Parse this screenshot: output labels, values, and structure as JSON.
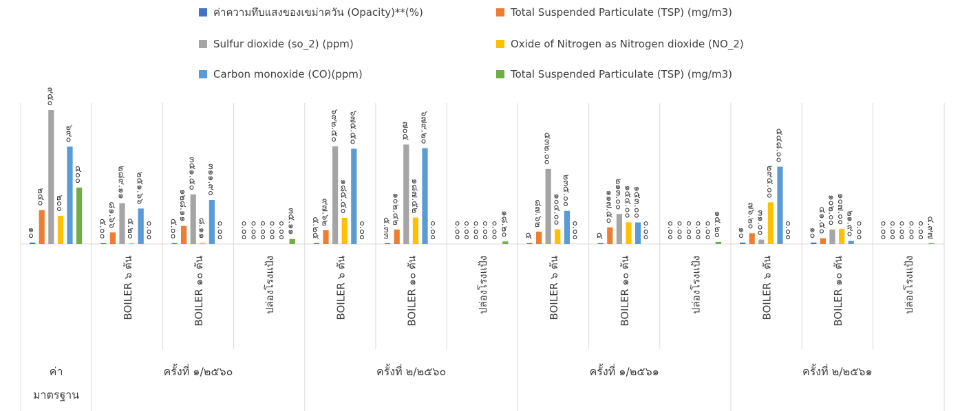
{
  "chart_data": {
    "type": "bar",
    "title": "",
    "xlabel": "",
    "ylabel": "",
    "ylim": [
      0,
      950
    ],
    "grid": false,
    "legend_position": "top",
    "colors": [
      "#4472C4",
      "#ED7D31",
      "#A5A5A5",
      "#FFC000",
      "#5B9BD5",
      "#70AD47"
    ],
    "series": [
      {
        "name": "ค่าความทึบแสงของเขม่าควัน (Opacity)**(%)"
      },
      {
        "name": "Total Suspended Particulate (TSP) (mg/m3)"
      },
      {
        "name": "Sulfur dioxide (so_2) (ppm)"
      },
      {
        "name": "Oxide of Nitrogen as Nitrogen dioxide (NO_2)"
      },
      {
        "name": "Carbon monoxide (CO)(ppm)"
      },
      {
        "name": "Total Suspended Particulate (TSP) (mg/m3)"
      }
    ],
    "groups": [
      {
        "label": "ค่า\nมาตรฐาน",
        "categories": [
          {
            "label": "",
            "bars": [
              {
                "s": 0,
                "v": 10,
                "t": "๑๐"
              },
              {
                "s": 1,
                "v": 240,
                "t": "๒๔๐"
              },
              {
                "s": 2,
                "v": 950,
                "t": "๙๕๐"
              },
              {
                "s": 3,
                "v": 200,
                "t": "๒๐๐"
              },
              {
                "s": 4,
                "v": 690,
                "t": "๖๙๐"
              },
              {
                "s": 5,
                "v": 400,
                "t": "๔๐๐"
              }
            ]
          }
        ]
      },
      {
        "label": "ครั้งที่  ๑/๒๕๖๐",
        "categories": [
          {
            "label": "BOILER ๖ ตัน",
            "bars": [
              {
                "s": 0,
                "v": 5,
                "t": "๕.๐๐"
              },
              {
                "s": 1,
                "v": 81.66,
                "t": "๘๑.๖๖"
              },
              {
                "s": 2,
                "v": 289.11,
                "t": "๒๘๙.๑๑"
              },
              {
                "s": 3,
                "v": 5.2,
                "t": "๕.๒๐"
              },
              {
                "s": 4,
                "v": 251.66,
                "t": "๒๕๑.๖๖"
              },
              {
                "s": 5,
                "v": 0,
                "t": "๐.๐๐"
              }
            ]
          },
          {
            "label": "BOILER ๑๐ ตัน",
            "bars": [
              {
                "s": 0,
                "v": 5,
                "t": "๕.๐๐"
              },
              {
                "s": 1,
                "v": 128.11,
                "t": "๑๒๘.๑๑"
              },
              {
                "s": 2,
                "v": 351.5,
                "t": "๓๕๑.๕๐"
              },
              {
                "s": 3,
                "v": 8.11,
                "t": "๘.๑๑"
              },
              {
                "s": 4,
                "v": 311.9,
                "t": "๓๑๑.๙๐"
              },
              {
                "s": 5,
                "v": 0,
                "t": "๐.๐๐"
              }
            ]
          },
          {
            "label": "ปล่องโรงแป้ง",
            "bars": [
              {
                "s": 0,
                "v": 0,
                "t": "๐.๐๐"
              },
              {
                "s": 1,
                "v": 0,
                "t": "๐.๐๐"
              },
              {
                "s": 2,
                "v": 0,
                "t": "๐.๐๐"
              },
              {
                "s": 3,
                "v": 0,
                "t": "๐.๐๐"
              },
              {
                "s": 4,
                "v": 0,
                "t": "๐.๐๐"
              },
              {
                "s": 5,
                "v": 35.11,
                "t": "๓๕.๑๑"
              }
            ]
          }
        ]
      },
      {
        "label": "ครั้งที่  ๒/๒๕๖๐",
        "categories": [
          {
            "label": "BOILER ๖ ตัน",
            "bars": [
              {
                "s": 0,
                "v": 5.25,
                "t": "๕.๒๕"
              },
              {
                "s": 1,
                "v": 97.62,
                "t": "๙๗.๖๒"
              },
              {
                "s": 2,
                "v": 692.5,
                "t": "๖๙๒.๕๐"
              },
              {
                "s": 3,
                "v": 185.5,
                "t": "๑๘๕.๕๐"
              },
              {
                "s": 4,
                "v": 675.5,
                "t": "๖๗๕.๕๐"
              },
              {
                "s": 5,
                "v": 0,
                "t": "๐.๐๐"
              }
            ]
          },
          {
            "label": "BOILER ๑๐ ตัน",
            "bars": [
              {
                "s": 0,
                "v": 5.33,
                "t": "๕.๓๓"
              },
              {
                "s": 1,
                "v": 102.42,
                "t": "๑๐๒.๔๒"
              },
              {
                "s": 2,
                "v": 705,
                "t": "๗๐๕"
              },
              {
                "s": 3,
                "v": 187.52,
                "t": "๑๘๗.๕๒"
              },
              {
                "s": 4,
                "v": 679.2,
                "t": "๖๗๙.๒๐"
              },
              {
                "s": 5,
                "v": 0,
                "t": "๐.๐๐"
              }
            ]
          },
          {
            "label": "ปล่องโรงแป้ง",
            "bars": [
              {
                "s": 0,
                "v": 0,
                "t": "๐.๐๐"
              },
              {
                "s": 1,
                "v": 0,
                "t": "๐.๐๐"
              },
              {
                "s": 2,
                "v": 0,
                "t": "๐.๐๐"
              },
              {
                "s": 3,
                "v": 0,
                "t": "๐.๐๐"
              },
              {
                "s": 4,
                "v": 0,
                "t": "๐.๐๐"
              },
              {
                "s": 5,
                "v": 18.2,
                "t": "๑๘.๒๐"
              }
            ]
          }
        ]
      },
      {
        "label": "ครั้งที่  ๑/๒๕๖๑",
        "categories": [
          {
            "label": "BOILER ๖ ตัน",
            "bars": [
              {
                "s": 0,
                "v": 5,
                "t": "๕"
              },
              {
                "s": 1,
                "v": 87.62,
                "t": "๘๗.๖๒"
              },
              {
                "s": 2,
                "v": 532,
                "t": "๕๓๒.๐๐"
              },
              {
                "s": 3,
                "v": 104,
                "t": "๑๐๔.๐๐"
              },
              {
                "s": 4,
                "v": 235,
                "t": "๒๓๕.๐๐"
              },
              {
                "s": 5,
                "v": 0,
                "t": "๐.๐๐"
              }
            ]
          },
          {
            "label": "BOILER ๑๐ ตัน",
            "bars": [
              {
                "s": 0,
                "v": 5,
                "t": "๕"
              },
              {
                "s": 1,
                "v": 117.5,
                "t": "๑๑๗.๕๐"
              },
              {
                "s": 2,
                "v": 213,
                "t": "๒๑๓.๐๐"
              },
              {
                "s": 3,
                "v": 154,
                "t": "๑๕๔.๐๐"
              },
              {
                "s": 4,
                "v": 153,
                "t": "๑๕๓.๐๐"
              },
              {
                "s": 5,
                "v": 0,
                "t": "๐.๐๐"
              }
            ]
          },
          {
            "label": "ปล่องโรงแป้ง",
            "bars": [
              {
                "s": 0,
                "v": 0,
                "t": "๐.๐๐"
              },
              {
                "s": 1,
                "v": 0,
                "t": "๐.๐๐"
              },
              {
                "s": 2,
                "v": 0,
                "t": "๐.๐๐"
              },
              {
                "s": 3,
                "v": 0,
                "t": "๐.๐๐"
              },
              {
                "s": 4,
                "v": 0,
                "t": "๐.๐๐"
              },
              {
                "s": 5,
                "v": 15.2,
                "t": "๑๕.๒๐"
              }
            ]
          }
        ]
      },
      {
        "label": "ครั้งที่  ๒/๒๕๖๑",
        "categories": [
          {
            "label": "BOILER ๖ ตัน",
            "bars": [
              {
                "s": 0,
                "v": 10,
                "t": "๑๐"
              },
              {
                "s": 1,
                "v": 76.2,
                "t": "๗๖.๒๐"
              },
              {
                "s": 2,
                "v": 31,
                "t": "๓๑.๐๐"
              },
              {
                "s": 3,
                "v": 295,
                "t": "๒๙๕.๐๐"
              },
              {
                "s": 4,
                "v": 548,
                "t": "๕๔๘.๐๐"
              },
              {
                "s": 5,
                "v": 0,
                "t": "๐.๐๐"
              }
            ]
          },
          {
            "label": "BOILER ๑๐ ตัน",
            "bars": [
              {
                "s": 0,
                "v": 10,
                "t": "๑๐"
              },
              {
                "s": 1,
                "v": 41.5,
                "t": "๔๑.๕๐"
              },
              {
                "s": 2,
                "v": 102,
                "t": "๑๐๒.๐๐"
              },
              {
                "s": 3,
                "v": 107,
                "t": "๑๐๗.๐๐"
              },
              {
                "s": 4,
                "v": 21.9,
                "t": "๒๑.๙๐"
              },
              {
                "s": 5,
                "v": 0,
                "t": "๐.๐๐"
              }
            ]
          },
          {
            "label": "ปล่องโรงแป้ง",
            "bars": [
              {
                "s": 0,
                "v": 0,
                "t": "๐.๐๐"
              },
              {
                "s": 1,
                "v": 0,
                "t": "๐.๐๐"
              },
              {
                "s": 2,
                "v": 0,
                "t": "๐.๐๐"
              },
              {
                "s": 3,
                "v": 0,
                "t": "๐.๐๐"
              },
              {
                "s": 4,
                "v": 0,
                "t": "๐.๐๐"
              },
              {
                "s": 5,
                "v": 4.97,
                "t": "๔.๙๗"
              }
            ]
          }
        ]
      }
    ]
  }
}
